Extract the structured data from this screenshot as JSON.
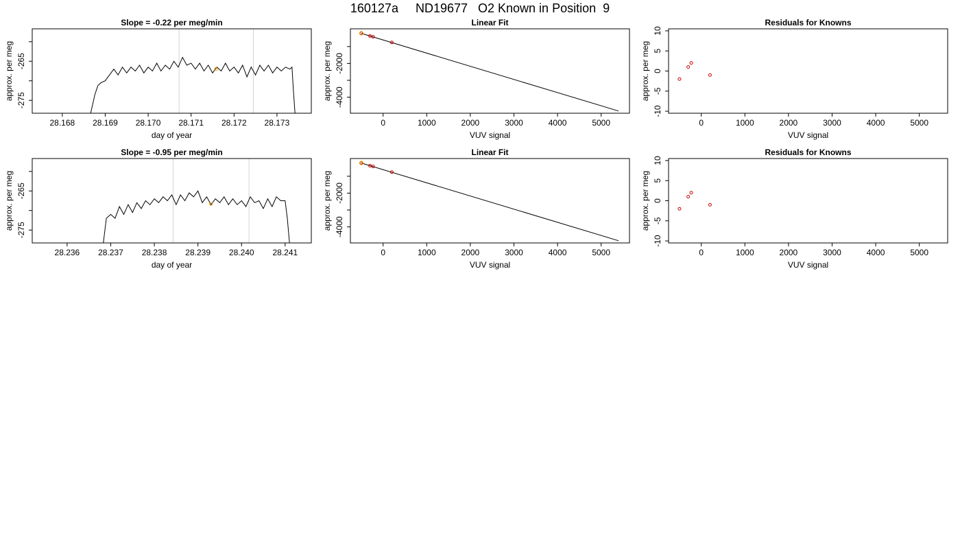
{
  "page": {
    "title": "160127a     ND19677   O2 Known in Position  9"
  },
  "colors": {
    "line": "#000000",
    "marker_orange": "#ffa500",
    "marker_red": "#cc0000",
    "vline": "#d3d3d3"
  },
  "chart_data": [
    {
      "type": "line",
      "title": "Slope =  -0.22  per meg/min",
      "xlabel": "day of year",
      "ylabel": "approx. per meg",
      "xlim": [
        28.1673,
        28.1738
      ],
      "ylim": [
        -278.3,
        -256.7
      ],
      "xticks": [
        "28.168",
        "28.169",
        "28.170",
        "28.171",
        "28.172",
        "28.173"
      ],
      "xtick_values": [
        28.168,
        28.169,
        28.17,
        28.171,
        28.172,
        28.173
      ],
      "yticks": [
        "-265",
        "-275"
      ],
      "ytick_values": [
        -265,
        -275
      ],
      "yticks_minor": [
        -260,
        -270
      ],
      "vlines": [
        28.17072,
        28.17245
      ],
      "series": [
        {
          "x": [
            28.16866,
            28.16876,
            28.16883,
            28.1689,
            28.169,
            28.1691,
            28.1692,
            28.1693,
            28.1694,
            28.1695,
            28.1696,
            28.1697,
            28.1698,
            28.1699,
            28.17,
            28.1701,
            28.1702,
            28.1703,
            28.1704,
            28.1705,
            28.1706,
            28.1707,
            28.1708,
            28.1709,
            28.171,
            28.1711,
            28.1712,
            28.1713,
            28.1714,
            28.1715,
            28.1716,
            28.1717,
            28.1718,
            28.1719,
            28.172,
            28.1721,
            28.1722,
            28.1723,
            28.1724,
            28.1725,
            28.1726,
            28.1727,
            28.1728,
            28.1729,
            28.173,
            28.1731,
            28.1732,
            28.1733,
            28.17335,
            28.17338,
            28.17342
          ],
          "y": [
            -278.3,
            -273.5,
            -271.2,
            -270.5,
            -270.0,
            -268.5,
            -267.0,
            -268.5,
            -266.5,
            -268.0,
            -266.5,
            -267.5,
            -266.0,
            -268.0,
            -266.5,
            -267.5,
            -265.5,
            -267.5,
            -266.0,
            -267.0,
            -265.0,
            -266.5,
            -264.0,
            -266.0,
            -265.5,
            -267.0,
            -265.5,
            -267.5,
            -266.0,
            -268.0,
            -266.5,
            -267.5,
            -265.5,
            -267.5,
            -266.5,
            -268.0,
            -266.0,
            -269.0,
            -266.5,
            -268.5,
            -266.0,
            -267.5,
            -266.0,
            -268.0,
            -266.5,
            -267.5,
            -266.5,
            -267.0,
            -266.5,
            -272.0,
            -278.3
          ]
        }
      ],
      "markers": [
        {
          "x": 28.17158,
          "y": -267.0
        }
      ]
    },
    {
      "type": "scatter",
      "title": "Linear Fit",
      "xlabel": "VUV signal",
      "ylabel": "approx. per meg",
      "xlim": [
        -750,
        5650
      ],
      "ylim": [
        -4950,
        50
      ],
      "xticks": [
        "0",
        "1000",
        "2000",
        "3000",
        "4000",
        "5000"
      ],
      "xtick_values": [
        0,
        1000,
        2000,
        3000,
        4000,
        5000
      ],
      "yticks": [
        "-2000",
        "-4000"
      ],
      "ytick_values": [
        -2000,
        -4000
      ],
      "yticks_minor": [
        -1000,
        -3000
      ],
      "fit_line": {
        "x": [
          -500,
          5400
        ],
        "y": [
          -220,
          -4820
        ]
      },
      "points": [
        {
          "x": -500,
          "y": -215
        },
        {
          "x": -300,
          "y": -375
        },
        {
          "x": -230,
          "y": -420
        },
        {
          "x": 200,
          "y": -755
        }
      ],
      "highlight_points": [
        {
          "x": -500,
          "y": -215
        }
      ]
    },
    {
      "type": "scatter",
      "title": "Residuals for Knowns",
      "xlabel": "VUV signal",
      "ylabel": "approx. per meg",
      "xlim": [
        -750,
        5650
      ],
      "ylim": [
        -10.5,
        10.5
      ],
      "xticks": [
        "0",
        "1000",
        "2000",
        "3000",
        "4000",
        "5000"
      ],
      "xtick_values": [
        0,
        1000,
        2000,
        3000,
        4000,
        5000
      ],
      "yticks": [
        "10",
        "5",
        "0",
        "-5",
        "-10"
      ],
      "ytick_values": [
        10,
        5,
        0,
        -5,
        -10
      ],
      "points": [
        {
          "x": -500,
          "y": -2
        },
        {
          "x": -300,
          "y": 1
        },
        {
          "x": -230,
          "y": 2
        },
        {
          "x": 200,
          "y": -1
        }
      ]
    },
    {
      "type": "line",
      "title": "Slope =  -0.95  per meg/min",
      "xlabel": "day of year",
      "ylabel": "approx. per meg",
      "xlim": [
        28.2352,
        28.2416
      ],
      "ylim": [
        -278.3,
        -256.7
      ],
      "xticks": [
        "28.236",
        "28.237",
        "28.238",
        "28.239",
        "28.240",
        "28.241"
      ],
      "xtick_values": [
        28.236,
        28.237,
        28.238,
        28.239,
        28.24,
        28.241
      ],
      "yticks": [
        "-265",
        "-275"
      ],
      "ytick_values": [
        -265,
        -275
      ],
      "yticks_minor": [
        -260,
        -270
      ],
      "vlines": [
        28.23843,
        28.24017
      ],
      "series": [
        {
          "x": [
            28.23683,
            28.2369,
            28.237,
            28.2371,
            28.2372,
            28.2373,
            28.2374,
            28.2375,
            28.2376,
            28.2377,
            28.2378,
            28.2379,
            28.238,
            28.2381,
            28.2382,
            28.2383,
            28.2384,
            28.2385,
            28.2386,
            28.2387,
            28.2388,
            28.2389,
            28.239,
            28.2391,
            28.2392,
            28.2393,
            28.2394,
            28.2395,
            28.2396,
            28.2397,
            28.2398,
            28.2399,
            28.24,
            28.2401,
            28.2402,
            28.2403,
            28.2404,
            28.2405,
            28.2406,
            28.2407,
            28.2408,
            28.2409,
            28.241,
            28.24105,
            28.2411
          ],
          "y": [
            -278.3,
            -272.0,
            -271.0,
            -272.0,
            -269.0,
            -271.0,
            -268.5,
            -270.5,
            -268.0,
            -269.5,
            -267.5,
            -268.5,
            -267.0,
            -268.0,
            -266.5,
            -267.5,
            -266.0,
            -268.5,
            -266.0,
            -267.5,
            -265.5,
            -266.5,
            -265.0,
            -268.0,
            -266.5,
            -268.5,
            -267.0,
            -268.0,
            -266.5,
            -268.5,
            -267.0,
            -268.5,
            -267.5,
            -269.0,
            -266.5,
            -268.0,
            -267.5,
            -269.5,
            -267.0,
            -269.0,
            -266.5,
            -267.5,
            -267.5,
            -272.0,
            -278.3
          ]
        }
      ],
      "markers": [
        {
          "x": 28.2393,
          "y": -268.3
        }
      ]
    },
    {
      "type": "scatter",
      "title": "Linear Fit",
      "xlabel": "VUV signal",
      "ylabel": "approx. per meg",
      "xlim": [
        -750,
        5650
      ],
      "ylim": [
        -4950,
        50
      ],
      "xticks": [
        "0",
        "1000",
        "2000",
        "3000",
        "4000",
        "5000"
      ],
      "xtick_values": [
        0,
        1000,
        2000,
        3000,
        4000,
        5000
      ],
      "yticks": [
        "-2000",
        "-4000"
      ],
      "ytick_values": [
        -2000,
        -4000
      ],
      "yticks_minor": [
        -1000,
        -3000
      ],
      "fit_line": {
        "x": [
          -500,
          5400
        ],
        "y": [
          -220,
          -4820
        ]
      },
      "points": [
        {
          "x": -500,
          "y": -215
        },
        {
          "x": -300,
          "y": -375
        },
        {
          "x": -230,
          "y": -420
        },
        {
          "x": 200,
          "y": -755
        }
      ],
      "highlight_points": [
        {
          "x": -500,
          "y": -215
        }
      ]
    },
    {
      "type": "scatter",
      "title": "Residuals for Knowns",
      "xlabel": "VUV signal",
      "ylabel": "approx. per meg",
      "xlim": [
        -750,
        5650
      ],
      "ylim": [
        -10.5,
        10.5
      ],
      "xticks": [
        "0",
        "1000",
        "2000",
        "3000",
        "4000",
        "5000"
      ],
      "xtick_values": [
        0,
        1000,
        2000,
        3000,
        4000,
        5000
      ],
      "yticks": [
        "10",
        "5",
        "0",
        "-5",
        "-10"
      ],
      "ytick_values": [
        10,
        5,
        0,
        -5,
        -10
      ],
      "points": [
        {
          "x": -500,
          "y": -2
        },
        {
          "x": -300,
          "y": 1
        },
        {
          "x": -230,
          "y": 2
        },
        {
          "x": 200,
          "y": -1
        }
      ]
    }
  ]
}
